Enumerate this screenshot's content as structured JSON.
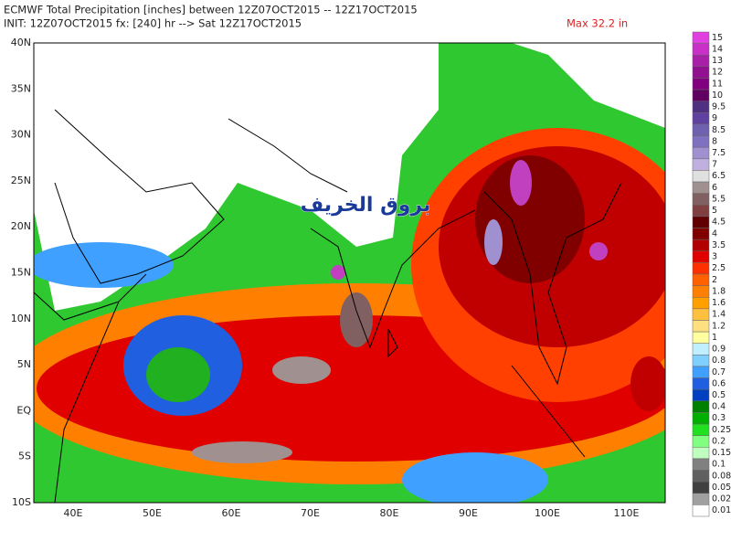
{
  "header": {
    "line1": "ECMWF Total Precipitation [inches] between 12Z07OCT2015 -- 12Z17OCT2015",
    "line2": "INIT: 12Z07OCT2015 fx: [240] hr --> Sat 12Z17OCT2015",
    "max": "Max 32.2 in"
  },
  "map": {
    "lat_labels": [
      "40N",
      "35N",
      "30N",
      "25N",
      "20N",
      "15N",
      "10N",
      "5N",
      "EQ",
      "5S",
      "10S"
    ],
    "lon_labels": [
      "40E",
      "50E",
      "60E",
      "70E",
      "80E",
      "90E",
      "100E",
      "110E"
    ],
    "watermark": "بروق الخريف"
  },
  "colorbar": {
    "labels": [
      "15",
      "14",
      "13",
      "12",
      "11",
      "10",
      "9.5",
      "9",
      "8.5",
      "8",
      "7.5",
      "7",
      "6.5",
      "6",
      "5.5",
      "5",
      "4.5",
      "4",
      "3.5",
      "3",
      "2.5",
      "2",
      "1.8",
      "1.6",
      "1.4",
      "1.2",
      "1",
      "0.9",
      "0.8",
      "0.7",
      "0.6",
      "0.5",
      "0.4",
      "0.3",
      "0.25",
      "0.2",
      "0.15",
      "0.1",
      "0.08",
      "0.05",
      "0.02",
      "0.01"
    ],
    "colors": [
      "#e040e0",
      "#c830c8",
      "#a820a8",
      "#901090",
      "#800080",
      "#600060",
      "#503080",
      "#6040a0",
      "#7060b0",
      "#8070c0",
      "#a090d0",
      "#c0b0e0",
      "#e0e0e0",
      "#a09090",
      "#806060",
      "#804040",
      "#600000",
      "#800000",
      "#b00000",
      "#e00000",
      "#ff3000",
      "#ff6000",
      "#ff8000",
      "#ffa000",
      "#ffc040",
      "#ffe080",
      "#ffffa0",
      "#c0f0ff",
      "#80d0ff",
      "#40a0ff",
      "#2060e0",
      "#0040c0",
      "#008000",
      "#00b000",
      "#20e020",
      "#80ff80",
      "#c0ffc0",
      "#808080",
      "#606060",
      "#404040",
      "#a0a0a0",
      "#ffffff"
    ]
  }
}
